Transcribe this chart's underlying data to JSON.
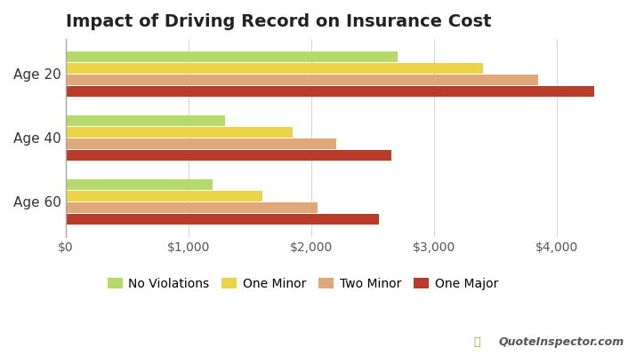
{
  "title": "Impact of Driving Record on Insurance Cost",
  "categories": [
    "Age 60",
    "Age 40",
    "Age 20"
  ],
  "series_order": [
    "One Major",
    "Two Minor",
    "One Minor",
    "No Violations"
  ],
  "series": {
    "No Violations": [
      2700,
      1300,
      1200
    ],
    "One Minor": [
      3400,
      1850,
      1600
    ],
    "Two Minor": [
      3850,
      2200,
      2050
    ],
    "One Major": [
      4300,
      2650,
      2550
    ]
  },
  "colors": {
    "No Violations": "#b5d96b",
    "One Minor": "#ecd44a",
    "Two Minor": "#e0a878",
    "One Major": "#b83c2a"
  },
  "xlim": [
    0,
    4600
  ],
  "xticks": [
    0,
    1000,
    2000,
    3000,
    4000
  ],
  "background_color": "#ffffff",
  "grid_color": "#d8d8d8",
  "title_fontsize": 14,
  "label_fontsize": 11,
  "tick_fontsize": 10,
  "legend_fontsize": 10,
  "bar_height": 0.17,
  "bar_gap": 0.01,
  "watermark": "QuoteInspector.com"
}
